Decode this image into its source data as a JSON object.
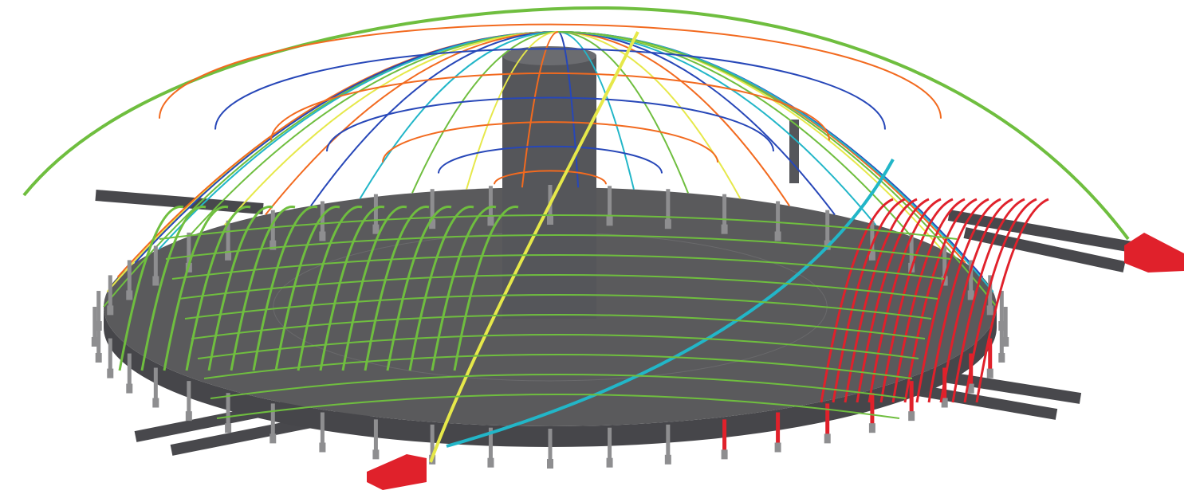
{
  "scene": {
    "subject": "structural-model-render",
    "background": "#ffffff",
    "colors": {
      "slab": "#5a5a5c",
      "slab_edge": "#46464a",
      "column": "#8e8e90",
      "beam": "#48484c",
      "support": "#e0212b",
      "member_green": "#6fbe3f",
      "member_yellow": "#e6e84a",
      "member_orange": "#f26a1f",
      "member_blue": "#2747b8",
      "member_cyan": "#22b6c8",
      "member_red": "#e0212b"
    }
  }
}
